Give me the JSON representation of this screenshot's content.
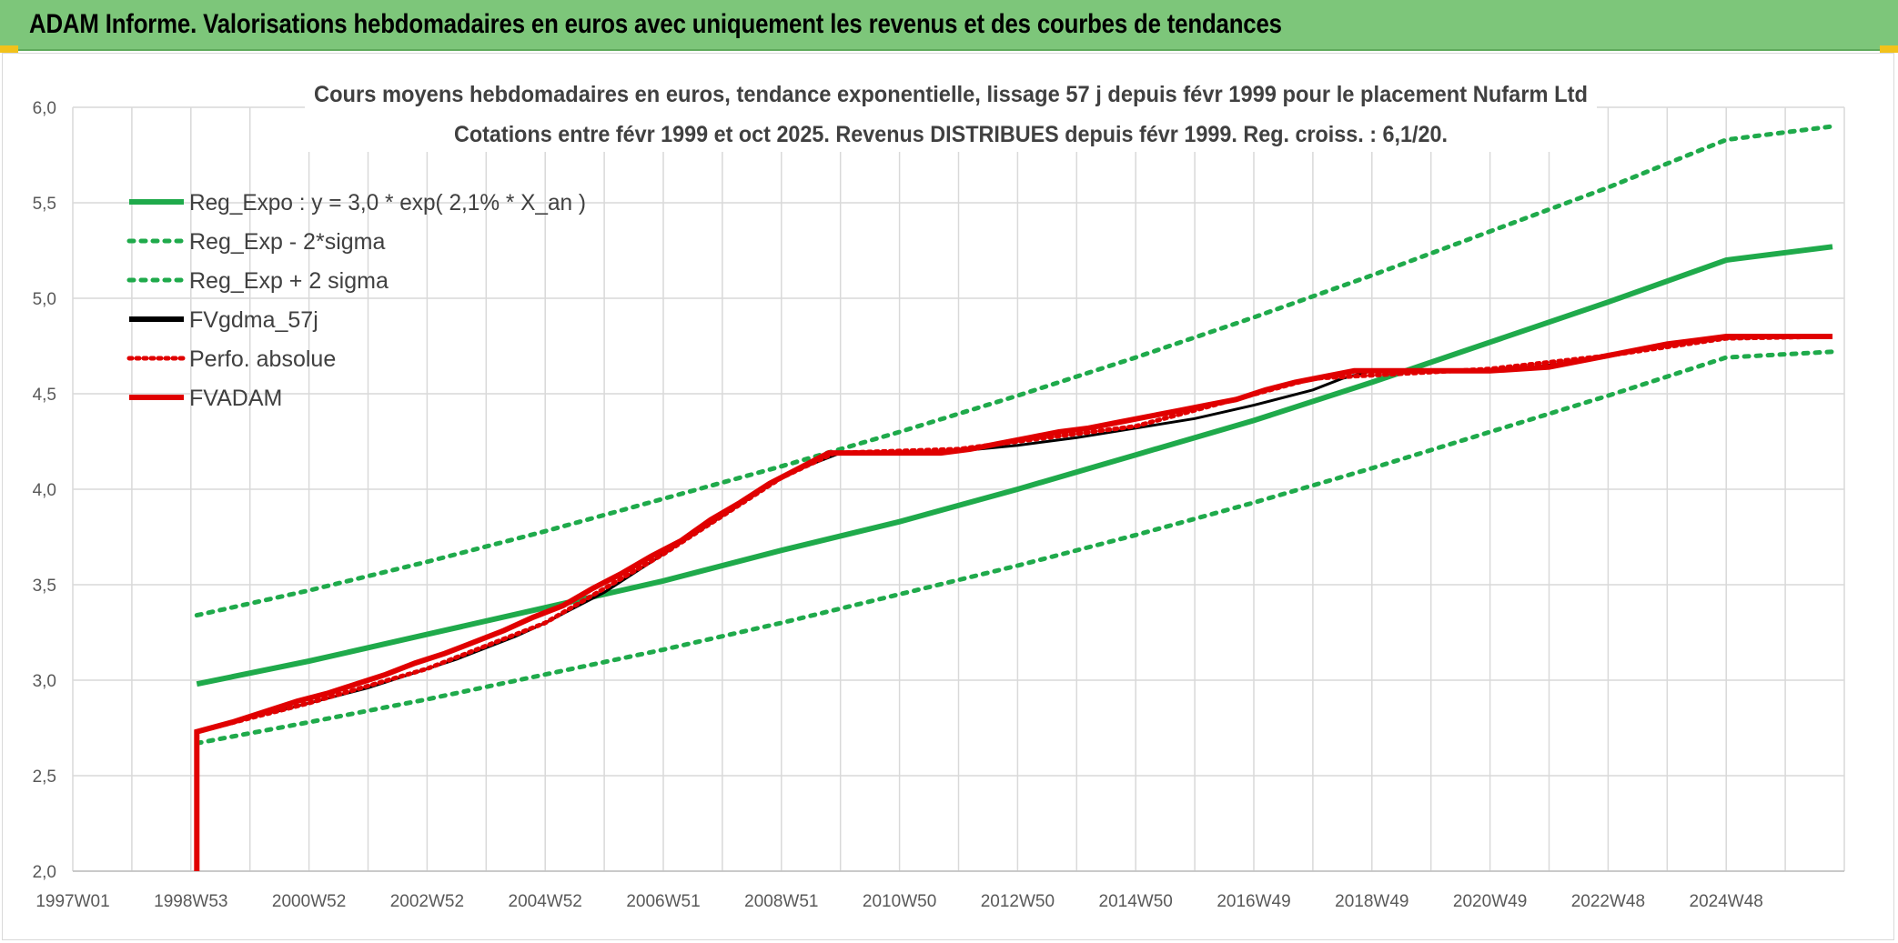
{
  "banner": {
    "title": "ADAM Informe. Valorisations hebdomadaires en euros avec uniquement les revenus et des courbes de tendances",
    "background": "#7dc67a"
  },
  "chart_data": {
    "type": "line",
    "title": "Cours moyens hebdomadaires en euros, tendance exponentielle, lissage 57 j depuis févr 1999 pour le placement Nufarm Ltd",
    "subtitle": "Cotations entre févr 1999 et oct 2025. Revenus DISTRIBUES depuis févr 1999. Reg. croiss. : 6,1/20.",
    "xlabel": "",
    "ylabel": "",
    "ylim": [
      2.0,
      6.0
    ],
    "xlim": [
      1997.0,
      2027.0
    ],
    "grid": true,
    "legend_position": "top-left",
    "y_ticks": [
      "2,0",
      "2,5",
      "3,0",
      "3,5",
      "4,0",
      "4,5",
      "5,0",
      "5,5",
      "6,0"
    ],
    "x_ticks": [
      {
        "label": "1997W01",
        "x": 1997.0
      },
      {
        "label": "1998W53",
        "x": 1999.0
      },
      {
        "label": "2000W52",
        "x": 2001.0
      },
      {
        "label": "2002W52",
        "x": 2003.0
      },
      {
        "label": "2004W52",
        "x": 2005.0
      },
      {
        "label": "2006W51",
        "x": 2007.0
      },
      {
        "label": "2008W51",
        "x": 2009.0
      },
      {
        "label": "2010W50",
        "x": 2011.0
      },
      {
        "label": "2012W50",
        "x": 2013.0
      },
      {
        "label": "2014W50",
        "x": 2015.0
      },
      {
        "label": "2016W49",
        "x": 2017.0
      },
      {
        "label": "2018W49",
        "x": 2019.0
      },
      {
        "label": "2020W49",
        "x": 2021.0
      },
      {
        "label": "2022W48",
        "x": 2023.0
      },
      {
        "label": "2024W48",
        "x": 2025.0
      }
    ],
    "series": [
      {
        "name": "Reg_Expo : y = 3,0 * exp( 2,1% *  X_an )",
        "style": "solid",
        "color": "#1faa4b",
        "x": [
          1999.1,
          2001,
          2003,
          2005,
          2007,
          2009,
          2011,
          2013,
          2015,
          2017,
          2019,
          2021,
          2023,
          2025,
          2026.8
        ],
        "y": [
          2.98,
          3.1,
          3.24,
          3.38,
          3.52,
          3.68,
          3.83,
          4.0,
          4.18,
          4.36,
          4.56,
          4.77,
          4.98,
          5.2,
          5.27
        ]
      },
      {
        "name": "Reg_Exp - 2*sigma",
        "style": "dotted",
        "color": "#1faa4b",
        "x": [
          1999.1,
          2001,
          2003,
          2005,
          2007,
          2009,
          2011,
          2013,
          2015,
          2017,
          2019,
          2021,
          2023,
          2025,
          2026.8
        ],
        "y": [
          2.67,
          2.78,
          2.9,
          3.03,
          3.16,
          3.3,
          3.45,
          3.6,
          3.76,
          3.93,
          4.11,
          4.3,
          4.49,
          4.69,
          4.72
        ]
      },
      {
        "name": "Reg_Exp + 2 sigma",
        "style": "dotted",
        "color": "#1faa4b",
        "x": [
          1999.1,
          2001,
          2003,
          2005,
          2007,
          2009,
          2011,
          2013,
          2015,
          2017,
          2019,
          2021,
          2023,
          2025,
          2026.8
        ],
        "y": [
          3.34,
          3.47,
          3.62,
          3.78,
          3.95,
          4.12,
          4.3,
          4.49,
          4.69,
          4.9,
          5.12,
          5.35,
          5.58,
          5.83,
          5.9
        ]
      },
      {
        "name": "FVgdma_57j",
        "style": "solid",
        "color": "#000000",
        "x": [
          1999.1,
          1999.5,
          2000,
          2000.5,
          2001,
          2001.5,
          2002,
          2002.5,
          2003,
          2003.5,
          2004,
          2004.5,
          2005,
          2005.5,
          2006,
          2006.5,
          2007,
          2007.5,
          2008,
          2008.5,
          2009,
          2009.5,
          2010,
          2011,
          2012,
          2013,
          2014,
          2015,
          2016,
          2017,
          2018,
          2018.5,
          2019,
          2020,
          2021,
          2022,
          2023,
          2024,
          2025,
          2026.8
        ],
        "y": [
          2.73,
          2.76,
          2.81,
          2.84,
          2.88,
          2.92,
          2.96,
          3.01,
          3.06,
          3.11,
          3.17,
          3.23,
          3.3,
          3.38,
          3.46,
          3.56,
          3.66,
          3.76,
          3.86,
          3.96,
          4.06,
          4.13,
          4.19,
          4.19,
          4.2,
          4.23,
          4.27,
          4.32,
          4.37,
          4.44,
          4.52,
          4.58,
          4.62,
          4.62,
          4.62,
          4.65,
          4.7,
          4.75,
          4.79,
          4.8
        ]
      },
      {
        "name": "Perfo. absolue",
        "style": "dotted",
        "color": "#e00000",
        "x": [
          1999.1,
          2001,
          2003,
          2005,
          2007,
          2009,
          2009.9,
          2012,
          2015,
          2018,
          2021,
          2023,
          2025,
          2026.8
        ],
        "y": [
          2.73,
          2.88,
          3.06,
          3.3,
          3.66,
          4.06,
          4.19,
          4.21,
          4.33,
          4.58,
          4.63,
          4.7,
          4.79,
          4.8
        ]
      },
      {
        "name": "FVADAM",
        "style": "solid",
        "color": "#e00000",
        "x": [
          1999.1,
          1999.1,
          1999.1,
          1999.7,
          2000.2,
          2000.8,
          2001.3,
          2001.8,
          2002.3,
          2002.8,
          2003.3,
          2003.8,
          2004.3,
          2004.8,
          2005.3,
          2005.8,
          2006.3,
          2006.8,
          2007.3,
          2007.8,
          2008.3,
          2008.8,
          2009.3,
          2009.8,
          2011.7,
          2012.2,
          2012.7,
          2013.2,
          2013.7,
          2014.2,
          2014.7,
          2015.2,
          2015.7,
          2016.2,
          2016.7,
          2017.2,
          2017.7,
          2018.2,
          2018.7,
          2020.0,
          2021.0,
          2022.0,
          2022.5,
          2023.0,
          2023.5,
          2024.0,
          2024.5,
          2025.0,
          2026.8
        ],
        "y": [
          2.0,
          2.0,
          2.73,
          2.78,
          2.83,
          2.89,
          2.93,
          2.98,
          3.03,
          3.09,
          3.14,
          3.2,
          3.26,
          3.33,
          3.39,
          3.48,
          3.56,
          3.65,
          3.73,
          3.84,
          3.93,
          4.03,
          4.11,
          4.19,
          4.19,
          4.21,
          4.24,
          4.27,
          4.3,
          4.32,
          4.35,
          4.38,
          4.41,
          4.44,
          4.47,
          4.52,
          4.56,
          4.59,
          4.62,
          4.62,
          4.62,
          4.64,
          4.67,
          4.7,
          4.73,
          4.76,
          4.78,
          4.8,
          4.8
        ]
      }
    ]
  }
}
